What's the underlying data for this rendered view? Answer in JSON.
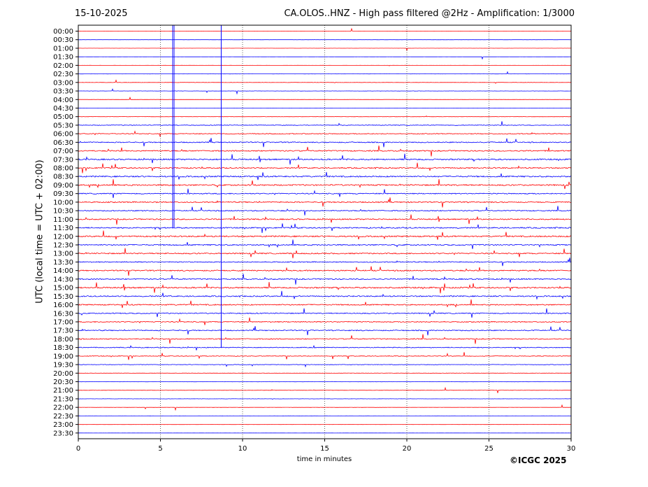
{
  "header": {
    "date": "15-10-2025",
    "title": "CA.OLOS..HNZ - High pass filtered @2Hz - Amplification: 1/3000"
  },
  "footer": {
    "copyright": "©ICGC 2025"
  },
  "chart_data": {
    "type": "line",
    "title": "CA.OLOS..HNZ - High pass filtered @2Hz - Amplification: 1/3000",
    "xlabel": "time in minutes",
    "ylabel": "UTC (local time = UTC + 02:00)",
    "xlim": [
      0,
      30
    ],
    "xticks": [
      0,
      5,
      10,
      15,
      20,
      25,
      30
    ],
    "grid": {
      "x": true,
      "style": "dotted"
    },
    "trace_colors": [
      "#ff0000",
      "#0000ff"
    ],
    "rows": [
      "00:00",
      "00:30",
      "01:00",
      "01:30",
      "02:00",
      "02:30",
      "03:00",
      "03:30",
      "04:00",
      "04:30",
      "05:00",
      "05:30",
      "06:00",
      "06:30",
      "07:00",
      "07:30",
      "08:00",
      "08:30",
      "09:00",
      "09:30",
      "10:00",
      "10:30",
      "11:00",
      "11:30",
      "12:00",
      "12:30",
      "13:00",
      "13:30",
      "14:00",
      "14:30",
      "15:00",
      "15:30",
      "16:00",
      "16:30",
      "17:00",
      "17:30",
      "18:00",
      "18:30",
      "19:00",
      "19:30",
      "20:00",
      "20:30",
      "21:00",
      "21:30",
      "22:00",
      "22:30",
      "23:00",
      "23:30"
    ],
    "row_noise_level": [
      0.04,
      0.03,
      0.03,
      0.03,
      0.03,
      0.03,
      0.08,
      0.06,
      0.03,
      0.04,
      0.08,
      0.2,
      0.25,
      0.3,
      0.35,
      0.4,
      0.35,
      0.4,
      0.4,
      0.3,
      0.35,
      0.3,
      0.35,
      0.35,
      0.4,
      0.35,
      0.35,
      0.3,
      0.35,
      0.35,
      0.4,
      0.35,
      0.35,
      0.3,
      0.3,
      0.3,
      0.3,
      0.25,
      0.2,
      0.15,
      0.1,
      0.1,
      0.08,
      0.06,
      0.05,
      0.04,
      0.04,
      0.04
    ],
    "long_spikes": [
      {
        "x_minutes": 5.75,
        "from_row": "00:00",
        "to_row": "11:30"
      },
      {
        "x_minutes": 8.7,
        "from_row": "00:00",
        "to_row": "18:30"
      }
    ]
  }
}
